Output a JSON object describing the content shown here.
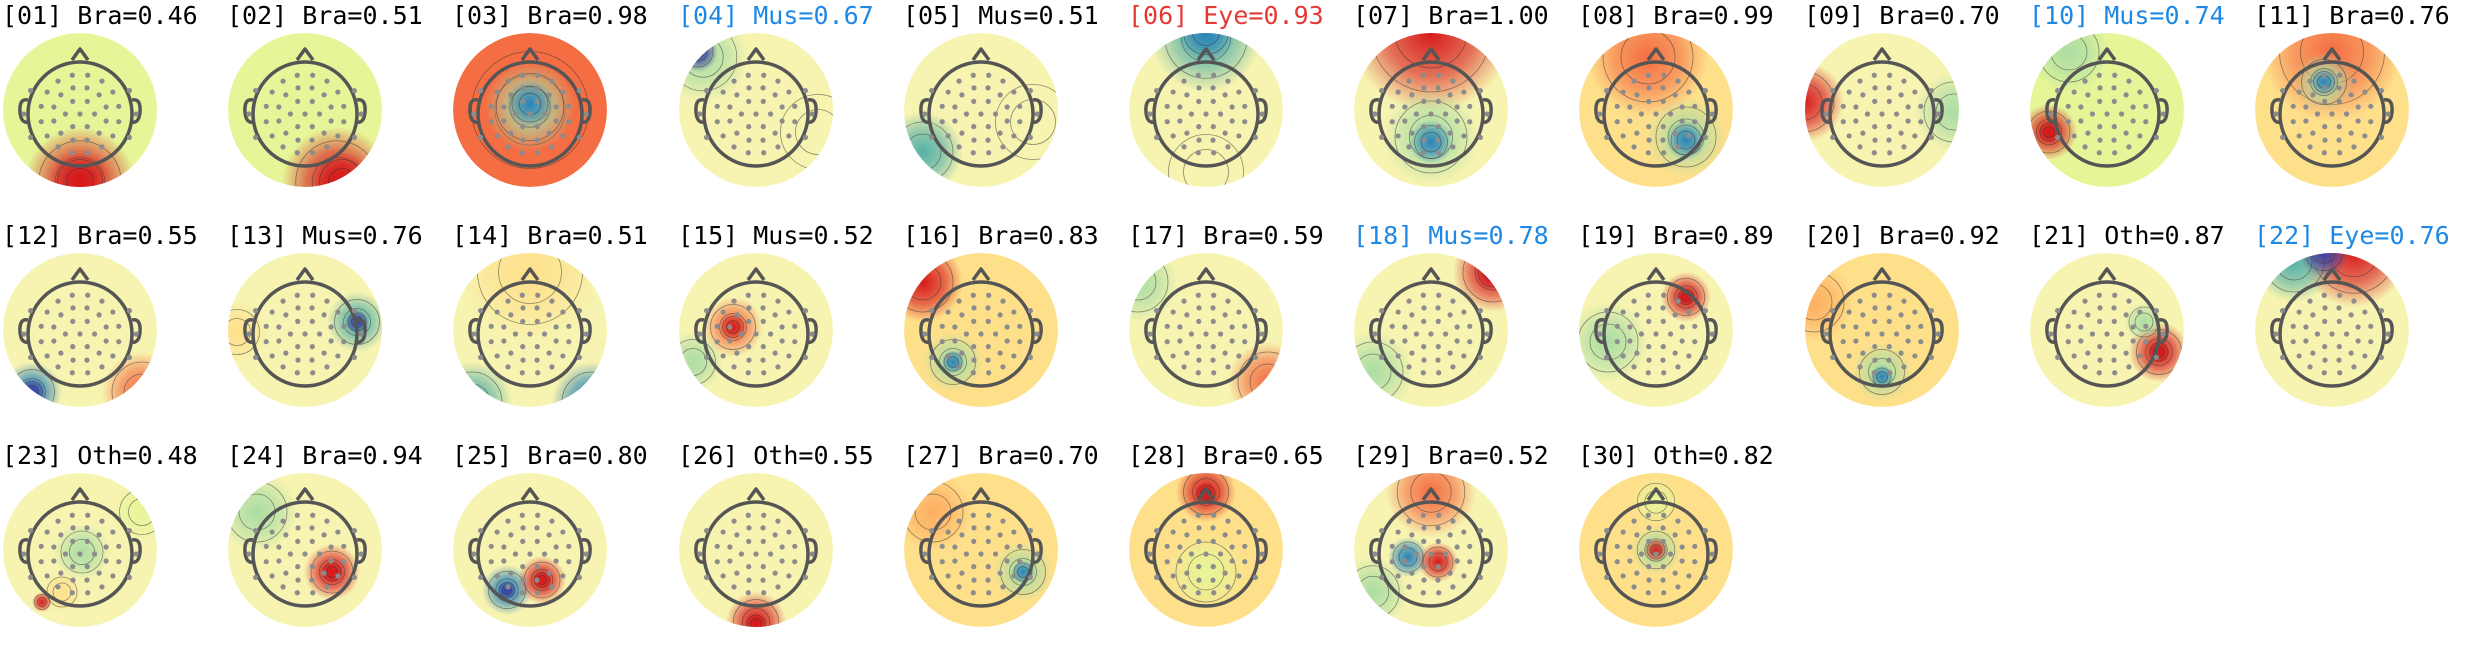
{
  "colors": {
    "normal": "#000000",
    "muscle_highlight": "#1e88e5",
    "eye_highlight": "#e53935",
    "head_outline": "#555555",
    "sensor": "#8c8c8c"
  },
  "components": [
    {
      "label": "[01] Bra=0.46",
      "icon": "topomap-icon",
      "status": "normal"
    },
    {
      "label": "[02] Bra=0.51",
      "icon": "topomap-icon",
      "status": "normal"
    },
    {
      "label": "[03] Bra=0.98",
      "icon": "topomap-icon",
      "status": "normal"
    },
    {
      "label": "[04] Mus=0.67",
      "icon": "topomap-icon",
      "status": "flag-blue"
    },
    {
      "label": "[05] Mus=0.51",
      "icon": "topomap-icon",
      "status": "normal"
    },
    {
      "label": "[06] Eye=0.93",
      "icon": "topomap-icon",
      "status": "flag-red"
    },
    {
      "label": "[07] Bra=1.00",
      "icon": "topomap-icon",
      "status": "normal"
    },
    {
      "label": "[08] Bra=0.99",
      "icon": "topomap-icon",
      "status": "normal"
    },
    {
      "label": "[09] Bra=0.70",
      "icon": "topomap-icon",
      "status": "normal"
    },
    {
      "label": "[10] Mus=0.74",
      "icon": "topomap-icon",
      "status": "flag-blue"
    },
    {
      "label": "[11] Bra=0.76",
      "icon": "topomap-icon",
      "status": "normal"
    },
    {
      "label": "[12] Bra=0.55",
      "icon": "topomap-icon",
      "status": "normal"
    },
    {
      "label": "[13] Mus=0.76",
      "icon": "topomap-icon",
      "status": "normal"
    },
    {
      "label": "[14] Bra=0.51",
      "icon": "topomap-icon",
      "status": "normal"
    },
    {
      "label": "[15] Mus=0.52",
      "icon": "topomap-icon",
      "status": "normal"
    },
    {
      "label": "[16] Bra=0.83",
      "icon": "topomap-icon",
      "status": "normal"
    },
    {
      "label": "[17] Bra=0.59",
      "icon": "topomap-icon",
      "status": "normal"
    },
    {
      "label": "[18] Mus=0.78",
      "icon": "topomap-icon",
      "status": "flag-blue"
    },
    {
      "label": "[19] Bra=0.89",
      "icon": "topomap-icon",
      "status": "normal"
    },
    {
      "label": "[20] Bra=0.92",
      "icon": "topomap-icon",
      "status": "normal"
    },
    {
      "label": "[21] Oth=0.87",
      "icon": "topomap-icon",
      "status": "normal"
    },
    {
      "label": "[22] Eye=0.76",
      "icon": "topomap-icon",
      "status": "flag-blue"
    },
    {
      "label": "[23] Oth=0.48",
      "icon": "topomap-icon",
      "status": "normal"
    },
    {
      "label": "[24] Bra=0.94",
      "icon": "topomap-icon",
      "status": "normal"
    },
    {
      "label": "[25] Bra=0.80",
      "icon": "topomap-icon",
      "status": "normal"
    },
    {
      "label": "[26] Oth=0.55",
      "icon": "topomap-icon",
      "status": "normal"
    },
    {
      "label": "[27] Bra=0.70",
      "icon": "topomap-icon",
      "status": "normal"
    },
    {
      "label": "[28] Bra=0.65",
      "icon": "topomap-icon",
      "status": "normal"
    },
    {
      "label": "[29] Bra=0.52",
      "icon": "topomap-icon",
      "status": "normal"
    },
    {
      "label": "[30] Oth=0.82",
      "icon": "topomap-icon",
      "status": "normal"
    }
  ]
}
